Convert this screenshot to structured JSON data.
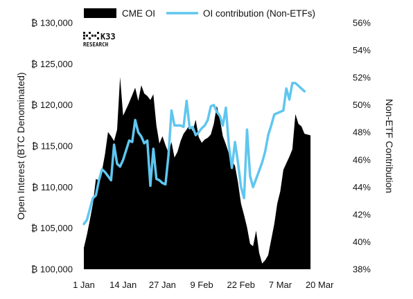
{
  "chart_data": {
    "type": "area",
    "legend": [
      {
        "label": "CME OI",
        "kind": "area",
        "color": "#000000"
      },
      {
        "label": "OI contribution (Non-ETFs)",
        "kind": "line",
        "color": "#5fc6ef"
      }
    ],
    "legend_placement": "top-center",
    "watermark": {
      "line1": "K33",
      "line2": "RESEARCH"
    },
    "y_left": {
      "label": "Open Interest (BTC Denominated)",
      "range": [
        100000,
        130000
      ],
      "ticks": [
        "₿ 100,000",
        "₿ 105,000",
        "₿ 110,000",
        "₿ 115,000",
        "₿ 120,000",
        "₿ 125,000",
        "₿ 130,000"
      ]
    },
    "y_right": {
      "label": "Non-ETF Contribution",
      "range": [
        38,
        56
      ],
      "ticks": [
        "38%",
        "40%",
        "42%",
        "44%",
        "46%",
        "48%",
        "50%",
        "52%",
        "54%",
        "56%"
      ]
    },
    "x_axis": {
      "range_days": [
        0,
        83
      ],
      "ticks": [
        "1 Jan",
        "14 Jan",
        "27 Jan",
        "9 Feb",
        "22 Feb",
        "7 Mar",
        "20 Mar"
      ]
    },
    "grid": false,
    "series": [
      {
        "name": "CME OI",
        "type": "area",
        "color": "#000000",
        "points": [
          [
            "2024-01-01",
            102600
          ],
          [
            "2024-01-02",
            104200
          ],
          [
            "2024-01-03",
            106000
          ],
          [
            "2024-01-04",
            108000
          ],
          [
            "2024-01-05",
            111000
          ],
          [
            "2024-01-06",
            110800
          ],
          [
            "2024-01-07",
            112000
          ],
          [
            "2024-01-08",
            114000
          ],
          [
            "2024-01-09",
            116700
          ],
          [
            "2024-01-10",
            116200
          ],
          [
            "2024-01-11",
            115600
          ],
          [
            "2024-01-12",
            117000
          ],
          [
            "2024-01-13",
            123400
          ],
          [
            "2024-01-14",
            118700
          ],
          [
            "2024-01-15",
            119500
          ],
          [
            "2024-01-16",
            120300
          ],
          [
            "2024-01-17",
            121200
          ],
          [
            "2024-01-18",
            122100
          ],
          [
            "2024-01-19",
            120500
          ],
          [
            "2024-01-20",
            122400
          ],
          [
            "2024-01-21",
            121400
          ],
          [
            "2024-01-22",
            121100
          ],
          [
            "2024-01-23",
            120600
          ],
          [
            "2024-01-24",
            121300
          ],
          [
            "2024-01-25",
            117500
          ],
          [
            "2024-01-26",
            115300
          ],
          [
            "2024-01-27",
            116200
          ],
          [
            "2024-01-28",
            115100
          ],
          [
            "2024-01-29",
            114200
          ],
          [
            "2024-01-30",
            115500
          ],
          [
            "2024-01-31",
            113600
          ],
          [
            "2024-02-01",
            114300
          ],
          [
            "2024-02-02",
            115600
          ],
          [
            "2024-02-03",
            116500
          ],
          [
            "2024-02-04",
            117000
          ],
          [
            "2024-02-05",
            117600
          ],
          [
            "2024-02-06",
            116800
          ],
          [
            "2024-02-07",
            118200
          ],
          [
            "2024-02-08",
            116100
          ],
          [
            "2024-02-09",
            115400
          ],
          [
            "2024-02-10",
            115800
          ],
          [
            "2024-02-11",
            116000
          ],
          [
            "2024-02-12",
            116400
          ],
          [
            "2024-02-13",
            117700
          ],
          [
            "2024-02-14",
            119900
          ],
          [
            "2024-02-15",
            118300
          ],
          [
            "2024-02-16",
            116200
          ],
          [
            "2024-02-17",
            115200
          ],
          [
            "2024-02-18",
            114100
          ],
          [
            "2024-02-19",
            113200
          ],
          [
            "2024-02-20",
            112600
          ],
          [
            "2024-02-21",
            110600
          ],
          [
            "2024-02-22",
            108000
          ],
          [
            "2024-02-23",
            106600
          ],
          [
            "2024-02-24",
            105100
          ],
          [
            "2024-02-25",
            103100
          ],
          [
            "2024-02-26",
            102800
          ],
          [
            "2024-02-27",
            104700
          ],
          [
            "2024-02-28",
            102000
          ],
          [
            "2024-02-29",
            100700
          ],
          [
            "2024-03-01",
            101100
          ],
          [
            "2024-03-02",
            101700
          ],
          [
            "2024-03-03",
            103600
          ],
          [
            "2024-03-04",
            105500
          ],
          [
            "2024-03-05",
            108000
          ],
          [
            "2024-03-06",
            109500
          ],
          [
            "2024-03-07",
            112100
          ],
          [
            "2024-03-08",
            112900
          ],
          [
            "2024-03-09",
            113700
          ],
          [
            "2024-03-10",
            114600
          ],
          [
            "2024-03-11",
            118900
          ],
          [
            "2024-03-12",
            117700
          ],
          [
            "2024-03-13",
            117400
          ],
          [
            "2024-03-14",
            116500
          ],
          [
            "2024-03-15",
            116400
          ],
          [
            "2024-03-16",
            116300
          ]
        ]
      },
      {
        "name": "OI contribution (Non-ETFs)",
        "type": "line",
        "color": "#5fc6ef",
        "points": [
          [
            "2024-01-01",
            41.3
          ],
          [
            "2024-01-02",
            41.6
          ],
          [
            "2024-01-03",
            42.4
          ],
          [
            "2024-01-04",
            43.2
          ],
          [
            "2024-01-05",
            43.4
          ],
          [
            "2024-01-06",
            44.5
          ],
          [
            "2024-01-07",
            45.3
          ],
          [
            "2024-01-08",
            45.1
          ],
          [
            "2024-01-09",
            44.8
          ],
          [
            "2024-01-10",
            44.5
          ],
          [
            "2024-01-11",
            47.1
          ],
          [
            "2024-01-12",
            45.7
          ],
          [
            "2024-01-13",
            45.5
          ],
          [
            "2024-01-14",
            46.0
          ],
          [
            "2024-01-15",
            46.7
          ],
          [
            "2024-01-16",
            47.4
          ],
          [
            "2024-01-17",
            47.3
          ],
          [
            "2024-01-18",
            48.9
          ],
          [
            "2024-01-19",
            48.0
          ],
          [
            "2024-01-20",
            47.7
          ],
          [
            "2024-01-21",
            47.2
          ],
          [
            "2024-01-22",
            47.4
          ],
          [
            "2024-01-23",
            44.1
          ],
          [
            "2024-01-24",
            46.8
          ],
          [
            "2024-01-25",
            44.6
          ],
          [
            "2024-01-26",
            44.5
          ],
          [
            "2024-01-27",
            44.3
          ],
          [
            "2024-01-28",
            44.2
          ],
          [
            "2024-01-29",
            46.3
          ],
          [
            "2024-01-30",
            49.6
          ],
          [
            "2024-01-31",
            48.5
          ],
          [
            "2024-02-01",
            48.5
          ],
          [
            "2024-02-02",
            48.5
          ],
          [
            "2024-02-03",
            48.4
          ],
          [
            "2024-02-04",
            50.3
          ],
          [
            "2024-02-05",
            48.3
          ],
          [
            "2024-02-06",
            48.4
          ],
          [
            "2024-02-07",
            47.8
          ],
          [
            "2024-02-08",
            48.0
          ],
          [
            "2024-02-09",
            48.3
          ],
          [
            "2024-02-10",
            48.5
          ],
          [
            "2024-02-11",
            48.9
          ],
          [
            "2024-02-12",
            49.9
          ],
          [
            "2024-02-13",
            50.0
          ],
          [
            "2024-02-14",
            49.5
          ],
          [
            "2024-02-15",
            49.2
          ],
          [
            "2024-02-16",
            48.5
          ],
          [
            "2024-02-17",
            49.8
          ],
          [
            "2024-02-18",
            47.0
          ],
          [
            "2024-02-19",
            45.4
          ],
          [
            "2024-02-20",
            47.3
          ],
          [
            "2024-02-21",
            45.8
          ],
          [
            "2024-02-22",
            44.0
          ],
          [
            "2024-02-23",
            43.2
          ],
          [
            "2024-02-24",
            48.2
          ],
          [
            "2024-02-25",
            44.8
          ],
          [
            "2024-02-26",
            44.0
          ],
          [
            "2024-02-27",
            44.6
          ],
          [
            "2024-02-28",
            45.2
          ],
          [
            "2024-02-29",
            45.8
          ],
          [
            "2024-03-01",
            46.6
          ],
          [
            "2024-03-02",
            47.8
          ],
          [
            "2024-03-03",
            48.5
          ],
          [
            "2024-03-04",
            49.3
          ],
          [
            "2024-03-05",
            49.4
          ],
          [
            "2024-03-06",
            49.5
          ],
          [
            "2024-03-07",
            49.6
          ],
          [
            "2024-03-08",
            51.2
          ],
          [
            "2024-03-09",
            50.4
          ],
          [
            "2024-03-10",
            51.6
          ],
          [
            "2024-03-11",
            51.6
          ],
          [
            "2024-03-12",
            51.4
          ],
          [
            "2024-03-13",
            51.2
          ],
          [
            "2024-03-14",
            51.0
          ]
        ]
      }
    ]
  }
}
